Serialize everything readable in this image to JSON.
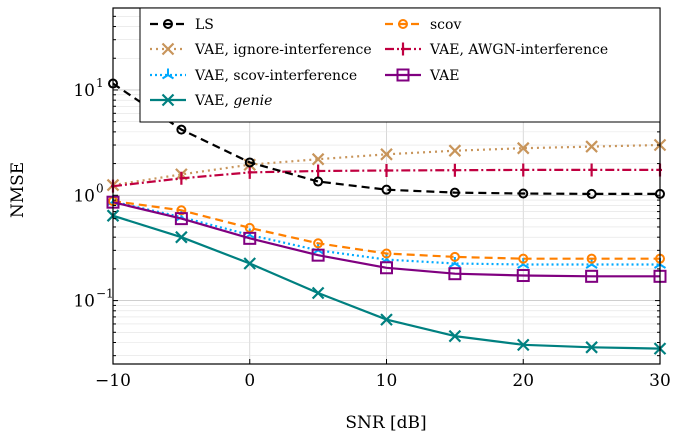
{
  "chart_data": {
    "type": "line",
    "xlabel": "SNR [dB]",
    "ylabel": "NMSE",
    "xlim": [
      -10,
      30
    ],
    "ylim": [
      0.025,
      60
    ],
    "yscale": "log",
    "xticks": [
      -10,
      0,
      10,
      20,
      30
    ],
    "xtick_labels": [
      "−10",
      "0",
      "10",
      "20",
      "30"
    ],
    "ytick_labels": [
      {
        "value": 0.1,
        "base": "10",
        "exp": "−1"
      },
      {
        "value": 1,
        "base": "10",
        "exp": "0"
      },
      {
        "value": 10,
        "base": "10",
        "exp": "1"
      }
    ],
    "grid": true,
    "legend_position": "top-right",
    "x": [
      -10,
      -5,
      0,
      5,
      10,
      15,
      20,
      25,
      30
    ],
    "series": [
      {
        "name": "LS",
        "color": "#000000",
        "dash": "8,5",
        "marker": "circle",
        "values": [
          11.5,
          4.2,
          2.05,
          1.35,
          1.13,
          1.06,
          1.04,
          1.03,
          1.03
        ]
      },
      {
        "name": "scov",
        "color": "#ff8000",
        "dash": "8,5",
        "marker": "circle",
        "values": [
          0.88,
          0.72,
          0.49,
          0.35,
          0.28,
          0.26,
          0.25,
          0.25,
          0.25
        ]
      },
      {
        "name": "VAE, ignore-interference",
        "color": "#c8955b",
        "dash": "2,4",
        "marker": "x",
        "values": [
          1.25,
          1.58,
          1.95,
          2.2,
          2.45,
          2.65,
          2.8,
          2.9,
          3.0
        ]
      },
      {
        "name": "VAE, AWGN-interference",
        "color": "#c00040",
        "dash": "9,3,2,3",
        "marker": "plus",
        "values": [
          1.22,
          1.45,
          1.65,
          1.7,
          1.72,
          1.73,
          1.74,
          1.74,
          1.74
        ]
      },
      {
        "name": "VAE, scov-interference",
        "color": "#00aaff",
        "dash": "2,3",
        "marker": "tri",
        "values": [
          0.87,
          0.62,
          0.42,
          0.3,
          0.245,
          0.225,
          0.22,
          0.22,
          0.22
        ]
      },
      {
        "name": "VAE",
        "color": "#800080",
        "dash": "",
        "marker": "square",
        "values": [
          0.86,
          0.6,
          0.39,
          0.27,
          0.205,
          0.18,
          0.173,
          0.17,
          0.17
        ]
      },
      {
        "name": "VAE, genie",
        "name_plain": "VAE, ",
        "name_italic": "genie",
        "color": "#008080",
        "dash": "",
        "marker": "x",
        "values": [
          0.64,
          0.4,
          0.225,
          0.118,
          0.066,
          0.046,
          0.038,
          0.036,
          0.035
        ]
      }
    ],
    "legend_order": [
      0,
      1,
      2,
      3,
      4,
      5,
      6
    ]
  }
}
